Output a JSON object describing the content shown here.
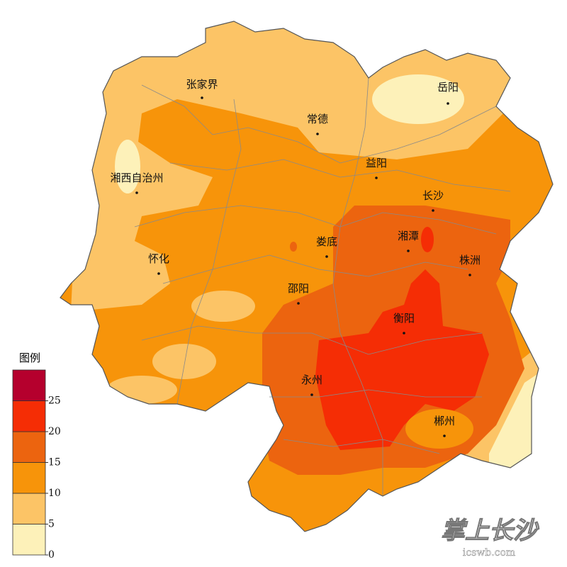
{
  "legend": {
    "title": "图例",
    "ticks": [
      0,
      5,
      10,
      15,
      20,
      25
    ],
    "colors": [
      "#fdf1b9",
      "#fcc466",
      "#f7940a",
      "#ec640f",
      "#f52d05",
      "#b5002d"
    ]
  },
  "cities": [
    "张家界",
    "岳阳",
    "常德",
    "益阳",
    "湘西自治州",
    "长沙",
    "湘潭",
    "娄底",
    "株洲",
    "怀化",
    "邵阳",
    "衡阳",
    "永州",
    "郴州"
  ],
  "watermark": {
    "title": "掌上长沙",
    "url": "icswb.com"
  }
}
